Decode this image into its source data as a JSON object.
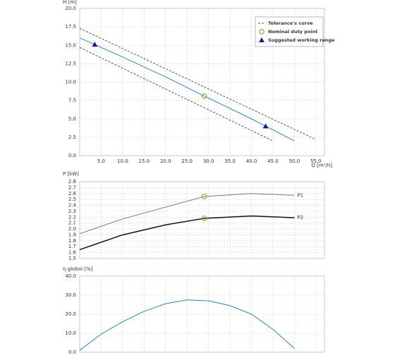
{
  "chart_data": [
    {
      "type": "line",
      "ylabel": "H [m]",
      "xlabel": "Q [m³/h]",
      "xlim": [
        0,
        57
      ],
      "ylim": [
        0,
        20
      ],
      "xticks": [
        {
          "value": 5,
          "label": "5.0"
        },
        {
          "value": 10,
          "label": "10.0"
        },
        {
          "value": 15,
          "label": "15.0"
        },
        {
          "value": 20,
          "label": "20.0"
        },
        {
          "value": 25,
          "label": "25.0"
        },
        {
          "value": 30,
          "label": "30.0"
        },
        {
          "value": 35,
          "label": "35.0"
        },
        {
          "value": 40,
          "label": "40.0"
        },
        {
          "value": 45,
          "label": "45.0"
        },
        {
          "value": 50,
          "label": "50.0"
        },
        {
          "value": 55,
          "label": "55.0"
        }
      ],
      "yticks": [
        {
          "value": 0,
          "label": "0.0"
        },
        2.5,
        {
          "value": 5,
          "label": "5.0"
        },
        7.5,
        {
          "value": 10,
          "label": "10.0"
        },
        12.5,
        {
          "value": 15,
          "label": "15.0"
        },
        17.5,
        {
          "value": 20,
          "label": "20.0"
        }
      ],
      "xtick_labels": true,
      "grid": true,
      "legend": "upper right",
      "series": [
        {
          "name": "Tolerance's curve",
          "color": "#555555",
          "dash": true,
          "x": [
            0,
            55
          ],
          "values": [
            17.3,
            2.2
          ]
        },
        {
          "color": "#555555",
          "dash": true,
          "x": [
            0,
            45
          ],
          "values": [
            14.7,
            2.0
          ]
        },
        {
          "color": "#2a8ab8",
          "x": [
            0,
            10,
            20,
            29,
            40,
            50
          ],
          "values": [
            16.0,
            13.4,
            10.7,
            8.1,
            5.0,
            2.0
          ]
        }
      ],
      "markers": [
        {
          "name": "Nominal duty point",
          "shape": "circle",
          "color": "#8db33a",
          "x": [
            29
          ],
          "values": [
            8.1
          ]
        },
        {
          "name": "Suggested working range",
          "shape": "triangle",
          "color": "#1a1aa0",
          "x": [
            3.5,
            43.3
          ],
          "values": [
            15.1,
            4.0
          ]
        }
      ]
    },
    {
      "type": "line",
      "ylabel": "P [kW]",
      "xlim": [
        0,
        57
      ],
      "ylim": [
        1.5,
        2.8
      ],
      "xticks": [
        5,
        10,
        15,
        20,
        25,
        30,
        35,
        40,
        45,
        50,
        55
      ],
      "xtick_labels": false,
      "yticks": [
        1.5,
        1.6,
        1.7,
        1.8,
        1.9,
        {
          "value": 2,
          "label": "2.0"
        },
        2.1,
        2.2,
        2.3,
        2.4,
        2.5,
        2.6,
        2.7,
        2.8
      ],
      "grid": true,
      "end_labels": true,
      "series": [
        {
          "name": "P1",
          "color": "#777777",
          "x": [
            0,
            10,
            20,
            29,
            40,
            50
          ],
          "values": [
            1.92,
            2.17,
            2.37,
            2.55,
            2.6,
            2.57
          ]
        },
        {
          "name": "P2",
          "color": "#111111",
          "width": 1.5,
          "x": [
            0,
            10,
            20,
            29,
            40,
            50
          ],
          "values": [
            1.65,
            1.9,
            2.07,
            2.18,
            2.22,
            2.19
          ]
        }
      ],
      "markers": [
        {
          "shape": "circle",
          "color": "#8db33a",
          "x": [
            29,
            29
          ],
          "values": [
            2.55,
            2.18
          ]
        }
      ]
    },
    {
      "type": "line",
      "ylabel": "η global [%]",
      "xlim": [
        0,
        57
      ],
      "ylim": [
        0,
        40
      ],
      "xticks": [
        5,
        10,
        15,
        20,
        25,
        30,
        35,
        40,
        45,
        50,
        55
      ],
      "xtick_labels": false,
      "yticks": [
        {
          "value": 0,
          "label": "0.0"
        },
        {
          "value": 10,
          "label": "10.0"
        },
        {
          "value": 20,
          "label": "20.0"
        },
        {
          "value": 30,
          "label": "30.0"
        },
        {
          "value": 40,
          "label": "40.0"
        }
      ],
      "grid": true,
      "series": [
        {
          "color": "#2a8ab8",
          "x": [
            0,
            5,
            10,
            15,
            20,
            25,
            30,
            35,
            40,
            45,
            50
          ],
          "values": [
            1,
            9.5,
            16,
            21.5,
            25.5,
            27.5,
            27,
            24.5,
            20,
            12,
            2
          ]
        }
      ]
    }
  ]
}
